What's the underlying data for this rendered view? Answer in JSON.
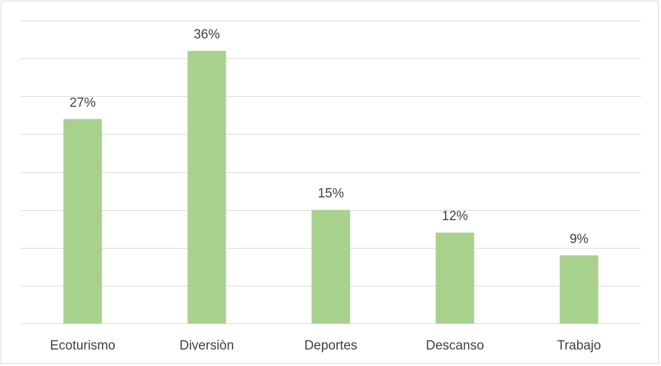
{
  "chart_data": {
    "type": "bar",
    "categories": [
      "Ecoturismo",
      "Diversiòn",
      "Deportes",
      "Descanso",
      "Trabajo"
    ],
    "values": [
      27,
      36,
      15,
      12,
      9
    ],
    "data_labels": [
      "27%",
      "36%",
      "15%",
      "12%",
      "9%"
    ],
    "title": "",
    "xlabel": "",
    "ylabel": "",
    "ylim": [
      0,
      40
    ],
    "unit": "%",
    "grid": true,
    "legend": "none",
    "bar_color": "#a9d18e",
    "gridline_color": "#d9d9d9",
    "text_color": "#404040"
  }
}
